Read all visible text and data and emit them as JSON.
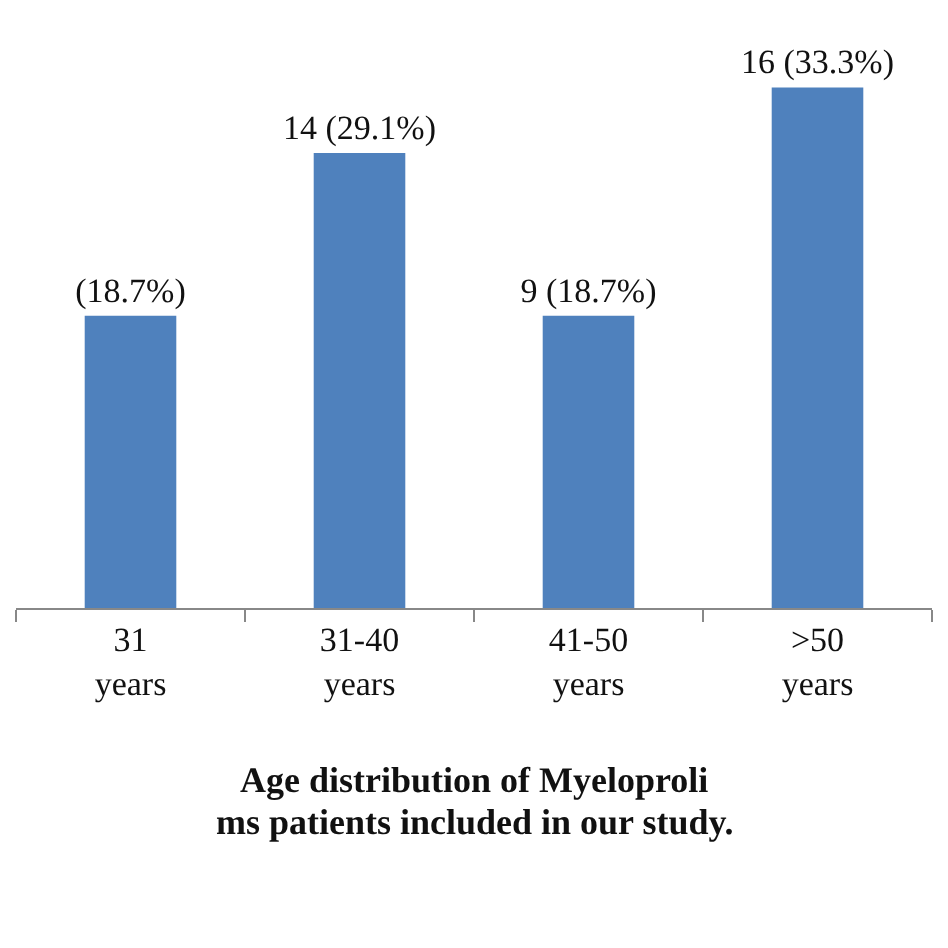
{
  "chart_data": {
    "type": "bar",
    "categories": [
      "31 years",
      "31-40 years",
      "41-50 years",
      ">50 years"
    ],
    "values": [
      18.7,
      29.1,
      18.7,
      33.3
    ],
    "value_labels": [
      "(18.7%)",
      "14 (29.1%)",
      "9 (18.7%)",
      "16 (33.3%)"
    ],
    "color": "#4f81bd",
    "legend": false,
    "annotations": [
      "Age distribution of Myeloproli",
      "ms patients included in our study."
    ]
  }
}
